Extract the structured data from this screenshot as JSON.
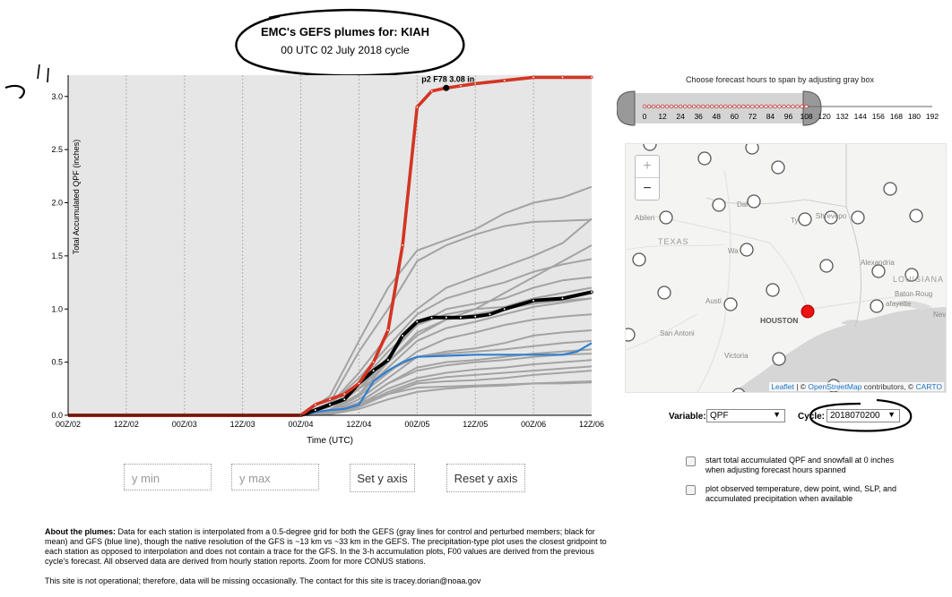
{
  "header": {
    "title": "EMC's GEFS plumes for: KIAH",
    "subtitle": "00 UTC 02 July 2018 cycle"
  },
  "annotation": {
    "scribble_mark": "11"
  },
  "chart_data": {
    "type": "line",
    "ylabel": "Total Accumulated QPF (inches)",
    "xlabel": "Time (UTC)",
    "x_ticks": [
      "00Z/02",
      "12Z/02",
      "00Z/03",
      "12Z/03",
      "00Z/04",
      "12Z/04",
      "00Z/05",
      "12Z/05",
      "00Z/06",
      "12Z/06"
    ],
    "x_range_hours": [
      0,
      108
    ],
    "ylim": [
      0,
      3.2
    ],
    "y_ticks": [
      "0.0",
      "0.5",
      "1.0",
      "1.5",
      "2.0",
      "2.5",
      "3.0"
    ],
    "y_tick_values": [
      0,
      0.5,
      1.0,
      1.5,
      2.0,
      2.5,
      3.0
    ],
    "grid": "vertical dotted",
    "annotation": {
      "text": "p2 F78 3.08 in",
      "x_hour": 78,
      "y": 3.08
    },
    "members": [
      {
        "x": [
          0,
          48,
          54,
          60,
          66,
          72,
          78,
          84,
          90,
          96,
          102,
          108
        ],
        "y": [
          0,
          0,
          0.12,
          0.6,
          1.0,
          1.45,
          1.6,
          1.7,
          1.78,
          1.82,
          1.83,
          1.84
        ]
      },
      {
        "x": [
          0,
          48,
          54,
          60,
          66,
          72,
          78,
          84,
          90,
          96,
          102,
          108
        ],
        "y": [
          0,
          0,
          0.18,
          0.7,
          1.2,
          1.55,
          1.65,
          1.75,
          1.9,
          2.0,
          2.05,
          2.15
        ]
      },
      {
        "x": [
          0,
          48,
          54,
          60,
          66,
          72,
          78,
          84,
          90,
          96,
          102,
          108
        ],
        "y": [
          0,
          0,
          0.1,
          0.4,
          0.75,
          1.0,
          1.2,
          1.3,
          1.4,
          1.5,
          1.62,
          1.85
        ]
      },
      {
        "x": [
          0,
          48,
          54,
          60,
          66,
          72,
          78,
          84,
          90,
          96,
          102,
          108
        ],
        "y": [
          0,
          0,
          0.05,
          0.25,
          0.5,
          0.75,
          0.9,
          1.0,
          1.15,
          1.3,
          1.45,
          1.6
        ]
      },
      {
        "x": [
          0,
          48,
          54,
          60,
          66,
          72,
          78,
          84,
          90,
          96,
          102,
          108
        ],
        "y": [
          0,
          0,
          0.1,
          0.35,
          0.65,
          0.95,
          1.1,
          1.18,
          1.25,
          1.35,
          1.42,
          1.47
        ]
      },
      {
        "x": [
          0,
          48,
          54,
          60,
          66,
          72,
          78,
          84,
          90,
          96,
          102,
          108
        ],
        "y": [
          0,
          0,
          0.05,
          0.25,
          0.55,
          0.85,
          1.0,
          1.05,
          1.1,
          1.2,
          1.27,
          1.3
        ]
      },
      {
        "x": [
          0,
          48,
          54,
          60,
          66,
          72,
          78,
          84,
          90,
          96,
          102,
          108
        ],
        "y": [
          0,
          0,
          0.08,
          0.3,
          0.6,
          0.85,
          0.95,
          1.0,
          1.02,
          1.1,
          1.15,
          1.2
        ]
      },
      {
        "x": [
          0,
          48,
          54,
          60,
          66,
          72,
          78,
          84,
          90,
          96,
          102,
          108
        ],
        "y": [
          0,
          0,
          0.05,
          0.2,
          0.45,
          0.7,
          0.82,
          0.88,
          0.95,
          1.02,
          1.06,
          1.1
        ]
      },
      {
        "x": [
          0,
          48,
          54,
          60,
          66,
          72,
          78,
          84,
          90,
          96,
          102,
          108
        ],
        "y": [
          0,
          0,
          0.04,
          0.18,
          0.4,
          0.6,
          0.72,
          0.78,
          0.85,
          0.9,
          0.93,
          0.95
        ]
      },
      {
        "x": [
          0,
          48,
          54,
          60,
          66,
          72,
          78,
          84,
          90,
          96,
          102,
          108
        ],
        "y": [
          0,
          0,
          0.03,
          0.15,
          0.35,
          0.55,
          0.6,
          0.63,
          0.68,
          0.75,
          0.78,
          0.8
        ]
      },
      {
        "x": [
          0,
          48,
          54,
          60,
          66,
          72,
          78,
          84,
          90,
          96,
          102,
          108
        ],
        "y": [
          0,
          0,
          0.05,
          0.25,
          0.42,
          0.55,
          0.58,
          0.6,
          0.62,
          0.65,
          0.68,
          0.7
        ]
      },
      {
        "x": [
          0,
          48,
          54,
          60,
          66,
          72,
          78,
          84,
          90,
          96,
          102,
          108
        ],
        "y": [
          0,
          0,
          0.02,
          0.12,
          0.3,
          0.45,
          0.5,
          0.52,
          0.55,
          0.58,
          0.6,
          0.62
        ]
      },
      {
        "x": [
          0,
          48,
          54,
          60,
          66,
          72,
          78,
          84,
          90,
          96,
          102,
          108
        ],
        "y": [
          0,
          0,
          0.02,
          0.1,
          0.25,
          0.35,
          0.4,
          0.43,
          0.45,
          0.48,
          0.5,
          0.52
        ]
      },
      {
        "x": [
          0,
          48,
          54,
          60,
          66,
          72,
          78,
          84,
          90,
          96,
          102,
          108
        ],
        "y": [
          0,
          0,
          0.01,
          0.08,
          0.2,
          0.3,
          0.32,
          0.33,
          0.35,
          0.38,
          0.4,
          0.42
        ]
      },
      {
        "x": [
          0,
          48,
          54,
          60,
          66,
          72,
          78,
          84,
          90,
          96,
          102,
          108
        ],
        "y": [
          0,
          0,
          0.01,
          0.06,
          0.15,
          0.22,
          0.25,
          0.27,
          0.28,
          0.3,
          0.31,
          0.32
        ]
      },
      {
        "x": [
          0,
          48,
          54,
          60,
          66,
          72,
          78,
          84,
          90,
          96,
          102,
          108
        ],
        "y": [
          0,
          0,
          0.02,
          0.09,
          0.22,
          0.32,
          0.36,
          0.38,
          0.4,
          0.42,
          0.44,
          0.46
        ]
      },
      {
        "x": [
          0,
          48,
          54,
          60,
          66,
          72,
          78,
          84,
          90,
          96,
          102,
          108
        ],
        "y": [
          0,
          0,
          0.03,
          0.12,
          0.3,
          0.42,
          0.47,
          0.5,
          0.52,
          0.55,
          0.57,
          0.58
        ]
      },
      {
        "x": [
          0,
          48,
          54,
          60,
          66,
          72,
          78,
          84,
          90,
          96,
          102,
          108
        ],
        "y": [
          0,
          0,
          0.04,
          0.2,
          0.5,
          0.78,
          0.9,
          0.95,
          1.0,
          1.05,
          1.08,
          1.1
        ]
      },
      {
        "x": [
          0,
          48,
          54,
          60,
          66,
          72,
          78,
          84,
          90,
          96,
          102,
          108
        ],
        "y": [
          0,
          0,
          0.02,
          0.12,
          0.2,
          0.26,
          0.27,
          0.28,
          0.29,
          0.3,
          0.3,
          0.31
        ]
      }
    ],
    "highlight": {
      "x": [
        0,
        48,
        51,
        54,
        57,
        60,
        63,
        66,
        69,
        72,
        75,
        78,
        81,
        84,
        90,
        96,
        102,
        108
      ],
      "y": [
        0,
        0,
        0.1,
        0.15,
        0.2,
        0.3,
        0.5,
        0.8,
        1.6,
        2.9,
        3.05,
        3.08,
        3.1,
        3.12,
        3.15,
        3.18,
        3.18,
        3.18
      ]
    },
    "mean": {
      "x": [
        0,
        48,
        51,
        54,
        57,
        60,
        63,
        66,
        69,
        72,
        75,
        78,
        81,
        84,
        87,
        90,
        96,
        102,
        108
      ],
      "y": [
        0,
        0,
        0.05,
        0.1,
        0.15,
        0.3,
        0.42,
        0.52,
        0.75,
        0.88,
        0.92,
        0.92,
        0.92,
        0.93,
        0.95,
        1.0,
        1.08,
        1.1,
        1.16
      ]
    },
    "gfs": {
      "x": [
        0,
        48,
        51,
        54,
        57,
        60,
        63,
        66,
        69,
        72,
        78,
        84,
        90,
        96,
        102,
        105,
        108
      ],
      "y": [
        0,
        0,
        0.03,
        0.05,
        0.06,
        0.1,
        0.32,
        0.42,
        0.5,
        0.55,
        0.56,
        0.57,
        0.57,
        0.57,
        0.57,
        0.6,
        0.68
      ]
    },
    "colors": {
      "members": "#a3a3a3",
      "mean": "#000000",
      "gfs": "#2f7fcf",
      "highlight": "#d33524",
      "background": "#e6e6e6"
    }
  },
  "controls": {
    "ymin_placeholder": "y min",
    "ymax_placeholder": "y max",
    "set_y_label": "Set y axis",
    "reset_y_label": "Reset y axis"
  },
  "about": {
    "heading": "About the plumes:",
    "text": " Data for each station is interpolated from a 0.5-degree grid for both the GEFS (gray lines for control and perturbed members; black for mean) and GFS (blue line), though the native resolution of the GFS is ~13 km vs ~33 km in the GEFS. The precipitation-type plot uses the closest gridpoint to each station as opposed to interpolation and does not contain a trace for the GFS. In the 3-h accumulation plots, F00 values are derived from the previous cycle's forecast. All observed data are derived from hourly station reports. Zoom for more CONUS stations.",
    "disclaimer": "This site is not operational; therefore, data will be missing occasionally. The contact for this site is tracey.dorian@noaa.gov"
  },
  "slider": {
    "caption": "Choose forecast hours to span by adjusting gray box",
    "ticks": [
      "0",
      "12",
      "24",
      "36",
      "48",
      "60",
      "72",
      "84",
      "96",
      "108",
      "120",
      "132",
      "144",
      "156",
      "168",
      "180",
      "192"
    ],
    "selected_range": [
      0,
      108
    ],
    "max_hour": 192
  },
  "map": {
    "zoom_in": "+",
    "zoom_out": "−",
    "labels": {
      "texas": "TEXAS",
      "louisiana": "LOUISIANA",
      "houston": "HOUSTON",
      "abilene": "Abilen",
      "dallas": "Dal",
      "waco": "Wa",
      "austin": "Austi",
      "san_antonio": "San Antoni",
      "victoria": "Victoria",
      "tyler": "Ty",
      "shreveport": "Shrevepo",
      "alexandria": "Alexandria",
      "baton_rouge": "Baton Roug",
      "lafayette": "afayette",
      "new_orleans": "Nev"
    },
    "attribution": {
      "leaflet": "Leaflet",
      "sep1": " | © ",
      "osm": "OpenStreetMap",
      "mid": " contributors, © ",
      "carto": "CARTO"
    }
  },
  "selectors": {
    "variable_label": "Variable:",
    "variable_value": "QPF",
    "cycle_label": "Cycle:",
    "cycle_value": "2018070200"
  },
  "options": {
    "opt1_line1": "start total accumulated QPF and snowfall at 0 inches",
    "opt1_line2": "when adjusting forecast hours spanned",
    "opt2_line1": "plot observed temperature, dew point, wind, SLP, and",
    "opt2_line2": "accumulated precipitation when available"
  }
}
